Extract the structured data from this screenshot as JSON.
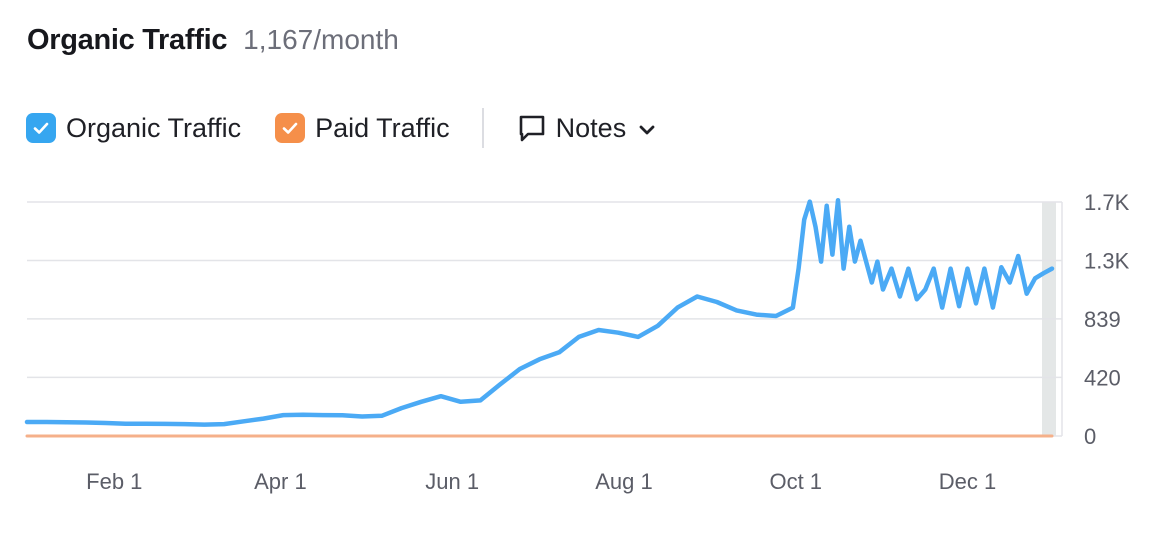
{
  "header": {
    "title": "Organic Traffic",
    "metric": "1,167/month"
  },
  "legend": {
    "organic": {
      "label": "Organic Traffic",
      "checked": true,
      "color": "#36a6f0"
    },
    "paid": {
      "label": "Paid Traffic",
      "checked": true,
      "color": "#f58f4a"
    },
    "notes": {
      "label": "Notes",
      "icon": "comment-icon",
      "dropdown_icon": "chevron-down-icon"
    }
  },
  "colors": {
    "organic_line": "#4baaf5",
    "paid_line": "#f5b08a",
    "grid": "#e3e4e8",
    "highlight_band": "#e4e7e7"
  },
  "chart_data": {
    "type": "line",
    "x_ticks": [
      "Feb 1",
      "Apr 1",
      "Jun 1",
      "Aug 1",
      "Oct 1",
      "Dec 1"
    ],
    "y_ticks": [
      "0",
      "420",
      "839",
      "1.3K",
      "1.7K"
    ],
    "y_tick_values": [
      0,
      420,
      839,
      1258,
      1677
    ],
    "ylim": [
      0,
      1677
    ],
    "grid": true,
    "series": [
      {
        "name": "Organic Traffic",
        "x": [
          "Jan 1",
          "Jan 8",
          "Jan 15",
          "Jan 22",
          "Jan 29",
          "Feb 5",
          "Feb 12",
          "Feb 19",
          "Feb 26",
          "Mar 5",
          "Mar 12",
          "Mar 19",
          "Mar 26",
          "Apr 2",
          "Apr 9",
          "Apr 16",
          "Apr 23",
          "Apr 30",
          "May 7",
          "May 14",
          "May 21",
          "May 28",
          "Jun 4",
          "Jun 11",
          "Jun 18",
          "Jun 25",
          "Jul 2",
          "Jul 9",
          "Jul 16",
          "Jul 23",
          "Jul 30",
          "Aug 6",
          "Aug 13",
          "Aug 20",
          "Aug 27",
          "Sep 3",
          "Sep 10",
          "Sep 17",
          "Sep 24",
          "Sep 30",
          "Oct 2",
          "Oct 4",
          "Oct 6",
          "Oct 8",
          "Oct 10",
          "Oct 12",
          "Oct 14",
          "Oct 16",
          "Oct 18",
          "Oct 20",
          "Oct 22",
          "Oct 24",
          "Oct 26",
          "Oct 28",
          "Oct 30",
          "Nov 1",
          "Nov 4",
          "Nov 7",
          "Nov 10",
          "Nov 13",
          "Nov 16",
          "Nov 19",
          "Nov 22",
          "Nov 25",
          "Nov 28",
          "Dec 1",
          "Dec 4",
          "Dec 7",
          "Dec 10",
          "Dec 13",
          "Dec 16",
          "Dec 19",
          "Dec 22",
          "Dec 25",
          "Dec 28",
          "Dec 31"
        ],
        "values": [
          100,
          100,
          99,
          97,
          93,
          88,
          88,
          87,
          85,
          82,
          85,
          105,
          125,
          150,
          152,
          150,
          148,
          140,
          145,
          200,
          245,
          285,
          245,
          255,
          370,
          480,
          550,
          600,
          710,
          760,
          740,
          710,
          790,
          920,
          1000,
          960,
          900,
          870,
          860,
          920,
          1200,
          1550,
          1680,
          1500,
          1250,
          1650,
          1300,
          1690,
          1200,
          1500,
          1250,
          1400,
          1250,
          1100,
          1250,
          1050,
          1200,
          1000,
          1200,
          980,
          1050,
          1200,
          920,
          1200,
          930,
          1200,
          950,
          1200,
          920,
          1210,
          1100,
          1290,
          1020,
          1130,
          1167,
          1200
        ]
      },
      {
        "name": "Paid Traffic",
        "x": [
          "Jan 1",
          "Dec 31"
        ],
        "values": [
          0,
          0
        ]
      }
    ]
  }
}
